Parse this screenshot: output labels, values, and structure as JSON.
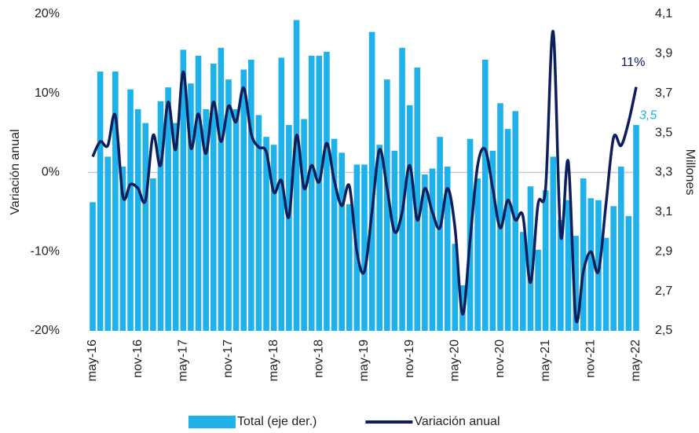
{
  "chart_data": {
    "type": "bar-line",
    "categories": [
      "may-16",
      null,
      null,
      null,
      null,
      null,
      "nov-16",
      null,
      null,
      null,
      null,
      null,
      "may-17",
      null,
      null,
      null,
      null,
      null,
      "nov-17",
      null,
      null,
      null,
      null,
      null,
      "may-18",
      null,
      null,
      null,
      null,
      null,
      "nov-18",
      null,
      null,
      null,
      null,
      null,
      "may-19",
      null,
      null,
      null,
      null,
      null,
      "nov-19",
      null,
      null,
      null,
      null,
      null,
      "may-20",
      null,
      null,
      null,
      null,
      null,
      "nov-20",
      null,
      null,
      null,
      null,
      null,
      "may-21",
      null,
      null,
      null,
      null,
      null,
      "nov-21",
      null,
      null,
      null,
      null,
      null,
      "may-22"
    ],
    "series": [
      {
        "name": "Total (eje der.)",
        "type": "bar",
        "axis": "y2",
        "color": "#1fb2ea",
        "values": [
          3.15,
          3.81,
          3.38,
          3.81,
          3.33,
          3.72,
          3.62,
          3.55,
          3.27,
          3.66,
          3.73,
          3.55,
          3.92,
          3.75,
          3.89,
          3.62,
          3.85,
          3.93,
          3.77,
          3.62,
          3.82,
          3.87,
          3.59,
          3.48,
          3.44,
          3.88,
          3.54,
          4.07,
          3.57,
          3.89,
          3.89,
          3.91,
          3.47,
          3.4,
          3.14,
          3.34,
          3.34,
          4.01,
          3.44,
          3.77,
          3.41,
          3.93,
          3.64,
          3.83,
          3.29,
          3.32,
          3.48,
          3.33,
          2.94,
          2.73,
          3.47,
          3.27,
          3.87,
          3.41,
          3.65,
          3.52,
          3.61,
          3.0,
          3.23,
          2.91,
          3.21,
          3.38,
          3.06,
          3.16,
          2.98,
          3.27,
          3.17,
          3.16,
          2.97,
          3.13,
          3.33,
          3.08,
          3.54
        ],
        "value_labels": [
          null,
          null,
          null,
          null,
          null,
          null,
          null,
          null,
          null,
          null,
          null,
          null,
          null,
          null,
          null,
          null,
          null,
          null,
          null,
          null,
          null,
          null,
          null,
          null,
          null,
          null,
          null,
          null,
          null,
          null,
          null,
          null,
          null,
          null,
          null,
          null,
          null,
          null,
          null,
          null,
          null,
          null,
          null,
          null,
          null,
          null,
          null,
          null,
          null,
          null,
          null,
          null,
          null,
          null,
          null,
          null,
          null,
          null,
          null,
          null,
          null,
          null,
          null,
          null,
          null,
          null,
          null,
          null,
          null,
          null,
          null,
          null,
          "3,5"
        ]
      },
      {
        "name": "Variación anual",
        "type": "line",
        "color": "#0c1f5c",
        "values": [
          2.0,
          3.9,
          3.4,
          7.2,
          -3.0,
          -1.5,
          -2.0,
          -3.5,
          4.7,
          0.9,
          8.9,
          2.9,
          12.7,
          3.1,
          7.4,
          2.4,
          8.9,
          3.9,
          8.4,
          6.4,
          10.7,
          4.9,
          3.2,
          2.6,
          -2.5,
          -1.0,
          -5.6,
          4.7,
          -2.0,
          0.9,
          -1.2,
          3.7,
          -1.0,
          -4.2,
          -1.7,
          -10.0,
          -12.5,
          -5.0,
          2.9,
          -2.0,
          -7.5,
          -5.0,
          0.9,
          -6.0,
          -2.0,
          -5.0,
          -7.0,
          -2.0,
          -7.0,
          -17.9,
          -8.5,
          0.9,
          2.9,
          -2.0,
          -7.0,
          -3.5,
          -6.0,
          -5.5,
          -13.9,
          -4.0,
          -2.0,
          17.8,
          -8.0,
          1.4,
          -18.4,
          -12.5,
          -10.0,
          -12.5,
          -4.0,
          4.4,
          3.4,
          6.4,
          10.8
        ],
        "value_labels": [
          null,
          null,
          null,
          null,
          null,
          null,
          null,
          null,
          null,
          null,
          null,
          null,
          null,
          null,
          null,
          null,
          null,
          null,
          null,
          null,
          null,
          null,
          null,
          null,
          null,
          null,
          null,
          null,
          null,
          null,
          null,
          null,
          null,
          null,
          null,
          null,
          null,
          null,
          null,
          null,
          null,
          null,
          null,
          null,
          null,
          null,
          null,
          null,
          null,
          null,
          null,
          null,
          null,
          null,
          null,
          null,
          null,
          null,
          null,
          null,
          null,
          null,
          null,
          null,
          null,
          null,
          null,
          null,
          null,
          null,
          null,
          null,
          "11%"
        ]
      }
    ],
    "y_label": "Variación anual",
    "y2_label": "Millones",
    "ylim": [
      -20,
      20
    ],
    "yticks": [
      {
        "value": -20,
        "label": "-20%"
      },
      {
        "value": -10,
        "label": "-10%"
      },
      {
        "value": 0,
        "label": "0%"
      },
      {
        "value": 10,
        "label": "10%"
      },
      {
        "value": 20,
        "label": "20%"
      }
    ],
    "y2lim": [
      2.5,
      4.1
    ],
    "y2ticks": [
      {
        "value": 2.5,
        "label": "2,5"
      },
      {
        "value": 2.7,
        "label": "2,7"
      },
      {
        "value": 2.9,
        "label": "2,9"
      },
      {
        "value": 3.1,
        "label": "3,1"
      },
      {
        "value": 3.3,
        "label": "3,3"
      },
      {
        "value": 3.5,
        "label": "3,5"
      },
      {
        "value": 3.7,
        "label": "3,7"
      },
      {
        "value": 3.9,
        "label": "3,9"
      },
      {
        "value": 4.1,
        "label": "4,1"
      }
    ],
    "zero_line": true,
    "legend": "bottom"
  }
}
